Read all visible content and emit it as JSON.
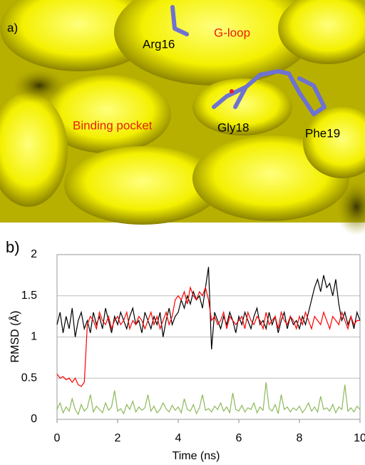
{
  "panel_a": {
    "label": "a)",
    "annotations": [
      "Arg16",
      "G-loop",
      "Gly18",
      "Phe19",
      "Binding pocket"
    ]
  },
  "chart_data": {
    "type": "line",
    "panel_label": "b)",
    "x_label": "Time (ns)",
    "y_label": "RMSD (Å)",
    "x": [
      0,
      0.1,
      0.2,
      0.3,
      0.4,
      0.5,
      0.6,
      0.7,
      0.8,
      0.9,
      1,
      1.1,
      1.2,
      1.3,
      1.4,
      1.5,
      1.6,
      1.7,
      1.8,
      1.9,
      2,
      2.1,
      2.2,
      2.3,
      2.4,
      2.5,
      2.6,
      2.7,
      2.8,
      2.9,
      3,
      3.1,
      3.2,
      3.3,
      3.4,
      3.5,
      3.6,
      3.7,
      3.8,
      3.9,
      4,
      4.1,
      4.2,
      4.3,
      4.4,
      4.5,
      4.6,
      4.7,
      4.8,
      4.9,
      5,
      5.1,
      5.2,
      5.3,
      5.4,
      5.5,
      5.6,
      5.7,
      5.8,
      5.9,
      6,
      6.1,
      6.2,
      6.3,
      6.4,
      6.5,
      6.6,
      6.7,
      6.8,
      6.9,
      7,
      7.1,
      7.2,
      7.3,
      7.4,
      7.5,
      7.6,
      7.7,
      7.8,
      7.9,
      8,
      8.1,
      8.2,
      8.3,
      8.4,
      8.5,
      8.6,
      8.7,
      8.8,
      8.9,
      9,
      9.1,
      9.2,
      9.3,
      9.4,
      9.5,
      9.6,
      9.7,
      9.8,
      9.9,
      10
    ],
    "series": [
      {
        "color": "#000000",
        "values": [
          1.15,
          1.3,
          1.05,
          1.25,
          1.1,
          1.35,
          1.0,
          1.2,
          1.3,
          1.1,
          1.2,
          1.05,
          1.3,
          1.15,
          1.25,
          1.1,
          1.35,
          1.2,
          1.05,
          1.25,
          1.15,
          1.3,
          1.2,
          1.1,
          1.25,
          1.35,
          1.15,
          1.2,
          1.05,
          1.3,
          1.2,
          1.1,
          1.25,
          1.15,
          1.3,
          1.0,
          1.2,
          1.35,
          1.15,
          1.25,
          1.3,
          1.45,
          1.35,
          1.5,
          1.4,
          1.55,
          1.45,
          1.5,
          1.35,
          1.6,
          1.85,
          0.85,
          1.3,
          1.2,
          1.1,
          1.25,
          1.15,
          1.3,
          1.2,
          1.05,
          1.25,
          1.15,
          1.3,
          1.2,
          1.1,
          1.25,
          1.35,
          1.15,
          1.2,
          1.1,
          1.3,
          1.15,
          1.25,
          1.05,
          1.2,
          1.3,
          1.1,
          1.25,
          1.15,
          1.2,
          1.1,
          1.25,
          1.15,
          1.3,
          1.45,
          1.6,
          1.7,
          1.55,
          1.75,
          1.6,
          1.65,
          1.5,
          1.7,
          1.4,
          1.2,
          1.3,
          1.15,
          1.25,
          1.1,
          1.3,
          1.2
        ]
      },
      {
        "color": "#ff0000",
        "values": [
          0.55,
          0.5,
          0.52,
          0.48,
          0.5,
          0.45,
          0.5,
          0.42,
          0.4,
          0.45,
          1.15,
          1.25,
          1.2,
          1.1,
          1.3,
          1.2,
          1.15,
          1.25,
          1.1,
          1.2,
          1.25,
          1.15,
          1.2,
          1.3,
          1.1,
          1.2,
          1.15,
          1.25,
          1.2,
          1.1,
          1.2,
          1.3,
          1.15,
          1.25,
          1.1,
          1.2,
          1.3,
          1.15,
          1.25,
          1.45,
          1.5,
          1.45,
          1.55,
          1.4,
          1.6,
          1.5,
          1.45,
          1.55,
          1.5,
          1.6,
          1.45,
          1.2,
          1.25,
          1.15,
          1.2,
          1.3,
          1.1,
          1.25,
          1.2,
          1.15,
          1.2,
          1.25,
          1.1,
          1.3,
          1.2,
          1.15,
          1.25,
          1.2,
          1.1,
          1.3,
          1.15,
          1.2,
          1.25,
          1.1,
          1.3,
          1.2,
          1.15,
          1.25,
          1.2,
          1.1,
          1.25,
          1.15,
          1.3,
          1.2,
          1.1,
          1.25,
          1.2,
          1.15,
          1.3,
          1.2,
          1.1,
          1.25,
          1.2,
          1.15,
          1.3,
          1.2,
          1.1,
          1.25,
          1.15,
          1.2,
          1.2
        ]
      },
      {
        "color": "#8db859",
        "values": [
          0.12,
          0.2,
          0.08,
          0.15,
          0.1,
          0.25,
          0.12,
          0.06,
          0.18,
          0.1,
          0.14,
          0.3,
          0.09,
          0.16,
          0.12,
          0.08,
          0.2,
          0.11,
          0.15,
          0.35,
          0.1,
          0.13,
          0.07,
          0.18,
          0.12,
          0.22,
          0.09,
          0.15,
          0.11,
          0.14,
          0.3,
          0.1,
          0.16,
          0.08,
          0.12,
          0.2,
          0.13,
          0.09,
          0.17,
          0.11,
          0.15,
          0.08,
          0.25,
          0.12,
          0.1,
          0.18,
          0.07,
          0.14,
          0.3,
          0.11,
          0.13,
          0.09,
          0.16,
          0.12,
          0.2,
          0.1,
          0.15,
          0.08,
          0.32,
          0.12,
          0.1,
          0.17,
          0.09,
          0.14,
          0.12,
          0.2,
          0.08,
          0.15,
          0.11,
          0.45,
          0.13,
          0.1,
          0.18,
          0.07,
          0.3,
          0.12,
          0.15,
          0.09,
          0.14,
          0.11,
          0.16,
          0.08,
          0.13,
          0.2,
          0.1,
          0.15,
          0.09,
          0.28,
          0.12,
          0.14,
          0.1,
          0.18,
          0.08,
          0.15,
          0.12,
          0.42,
          0.1,
          0.14,
          0.09,
          0.16,
          0.12
        ]
      }
    ],
    "xlim": [
      0,
      10
    ],
    "xticks": [
      0,
      2,
      4,
      6,
      8,
      10
    ],
    "ylim": [
      0,
      2
    ],
    "yticks": [
      0,
      0.5,
      1,
      1.5,
      2
    ],
    "grid": true
  }
}
